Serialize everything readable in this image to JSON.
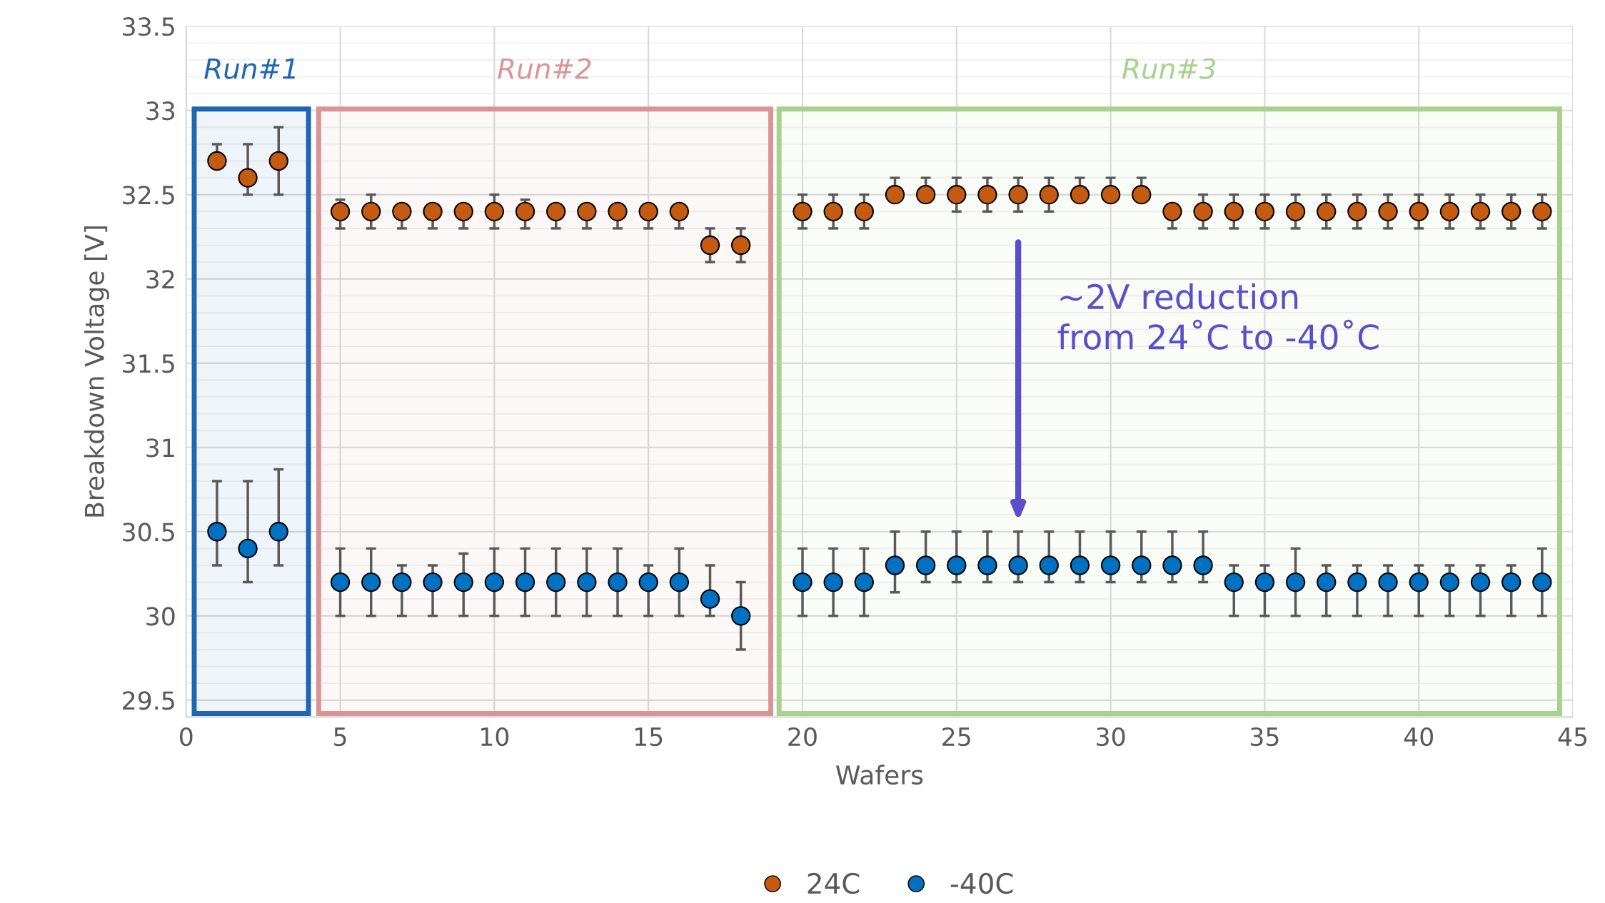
{
  "chart_data": {
    "type": "scatter",
    "xlabel": "Wafers",
    "ylabel": "Breakdown Voltage [V]",
    "xlim": [
      0,
      45
    ],
    "xticks": [
      0,
      5,
      10,
      15,
      20,
      25,
      30,
      35,
      40,
      45
    ],
    "ylim": [
      29.4,
      33.5
    ],
    "yticks": [
      29.5,
      30,
      30.5,
      31,
      31.5,
      32,
      32.5,
      33,
      33.5
    ],
    "grid": true,
    "legend": "bottom",
    "marker": "circle",
    "series": [
      {
        "name": "24C",
        "color": "#c55a11",
        "x": [
          1,
          2,
          3,
          5,
          6,
          7,
          8,
          9,
          10,
          11,
          12,
          13,
          14,
          15,
          16,
          17,
          18,
          20,
          21,
          22,
          23,
          24,
          25,
          26,
          27,
          28,
          29,
          30,
          31,
          32,
          33,
          34,
          35,
          36,
          37,
          38,
          39,
          40,
          41,
          42,
          43,
          44
        ],
        "values": [
          32.7,
          32.6,
          32.7,
          32.4,
          32.4,
          32.4,
          32.4,
          32.4,
          32.4,
          32.4,
          32.4,
          32.4,
          32.4,
          32.4,
          32.4,
          32.2,
          32.2,
          32.4,
          32.4,
          32.4,
          32.5,
          32.5,
          32.5,
          32.5,
          32.5,
          32.5,
          32.5,
          32.5,
          32.5,
          32.4,
          32.4,
          32.4,
          32.4,
          32.4,
          32.4,
          32.4,
          32.4,
          32.4,
          32.4,
          32.4,
          32.4,
          32.4
        ],
        "errors": [
          [
            32.7,
            32.8
          ],
          [
            32.5,
            32.8
          ],
          [
            32.5,
            32.9
          ],
          [
            32.3,
            32.47
          ],
          [
            32.3,
            32.5
          ],
          [
            32.3,
            32.4
          ],
          [
            32.3,
            32.4
          ],
          [
            32.3,
            32.4
          ],
          [
            32.3,
            32.5
          ],
          [
            32.3,
            32.47
          ],
          [
            32.3,
            32.4
          ],
          [
            32.3,
            32.4
          ],
          [
            32.3,
            32.4
          ],
          [
            32.3,
            32.4
          ],
          [
            32.3,
            32.4
          ],
          [
            32.1,
            32.3
          ],
          [
            32.1,
            32.3
          ],
          [
            32.3,
            32.5
          ],
          [
            32.3,
            32.5
          ],
          [
            32.3,
            32.5
          ],
          [
            32.5,
            32.6
          ],
          [
            32.5,
            32.6
          ],
          [
            32.4,
            32.6
          ],
          [
            32.4,
            32.6
          ],
          [
            32.4,
            32.6
          ],
          [
            32.4,
            32.6
          ],
          [
            32.5,
            32.6
          ],
          [
            32.5,
            32.6
          ],
          [
            32.5,
            32.6
          ],
          [
            32.3,
            32.4
          ],
          [
            32.3,
            32.5
          ],
          [
            32.3,
            32.5
          ],
          [
            32.3,
            32.5
          ],
          [
            32.3,
            32.5
          ],
          [
            32.3,
            32.5
          ],
          [
            32.3,
            32.5
          ],
          [
            32.3,
            32.5
          ],
          [
            32.3,
            32.5
          ],
          [
            32.3,
            32.5
          ],
          [
            32.3,
            32.5
          ],
          [
            32.3,
            32.5
          ],
          [
            32.3,
            32.5
          ]
        ]
      },
      {
        "name": "-40C",
        "color": "#0070c0",
        "x": [
          1,
          2,
          3,
          5,
          6,
          7,
          8,
          9,
          10,
          11,
          12,
          13,
          14,
          15,
          16,
          17,
          18,
          20,
          21,
          22,
          23,
          24,
          25,
          26,
          27,
          28,
          29,
          30,
          31,
          32,
          33,
          34,
          35,
          36,
          37,
          38,
          39,
          40,
          41,
          42,
          43,
          44
        ],
        "values": [
          30.5,
          30.4,
          30.5,
          30.2,
          30.2,
          30.2,
          30.2,
          30.2,
          30.2,
          30.2,
          30.2,
          30.2,
          30.2,
          30.2,
          30.2,
          30.1,
          30.0,
          30.2,
          30.2,
          30.2,
          30.3,
          30.3,
          30.3,
          30.3,
          30.3,
          30.3,
          30.3,
          30.3,
          30.3,
          30.3,
          30.3,
          30.2,
          30.2,
          30.2,
          30.2,
          30.2,
          30.2,
          30.2,
          30.2,
          30.2,
          30.2,
          30.2
        ],
        "errors": [
          [
            30.3,
            30.8
          ],
          [
            30.2,
            30.8
          ],
          [
            30.3,
            30.87
          ],
          [
            30.0,
            30.4
          ],
          [
            30.0,
            30.4
          ],
          [
            30.0,
            30.3
          ],
          [
            30.0,
            30.3
          ],
          [
            30.0,
            30.37
          ],
          [
            30.0,
            30.4
          ],
          [
            30.0,
            30.4
          ],
          [
            30.0,
            30.4
          ],
          [
            30.0,
            30.4
          ],
          [
            30.0,
            30.4
          ],
          [
            30.0,
            30.3
          ],
          [
            30.0,
            30.4
          ],
          [
            30.0,
            30.3
          ],
          [
            29.8,
            30.2
          ],
          [
            30.0,
            30.4
          ],
          [
            30.0,
            30.4
          ],
          [
            30.0,
            30.4
          ],
          [
            30.14,
            30.5
          ],
          [
            30.2,
            30.5
          ],
          [
            30.2,
            30.5
          ],
          [
            30.2,
            30.5
          ],
          [
            30.2,
            30.5
          ],
          [
            30.2,
            30.5
          ],
          [
            30.2,
            30.5
          ],
          [
            30.2,
            30.5
          ],
          [
            30.2,
            30.5
          ],
          [
            30.2,
            30.5
          ],
          [
            30.2,
            30.5
          ],
          [
            30.0,
            30.3
          ],
          [
            30.0,
            30.3
          ],
          [
            30.0,
            30.4
          ],
          [
            30.0,
            30.3
          ],
          [
            30.0,
            30.3
          ],
          [
            30.0,
            30.3
          ],
          [
            30.0,
            30.3
          ],
          [
            30.0,
            30.3
          ],
          [
            30.0,
            30.3
          ],
          [
            30.0,
            30.3
          ],
          [
            30.0,
            30.4
          ]
        ]
      }
    ],
    "bands": [
      {
        "axis": "x",
        "from": 0.26,
        "to": 3.97,
        "label": "Run#1",
        "color": "#1f66b2"
      },
      {
        "axis": "x",
        "from": 4.3,
        "to": 18.97,
        "label": "Run#2",
        "color": "#d99594"
      },
      {
        "axis": "x",
        "from": 19.24,
        "to": 44.57,
        "label": "Run#3",
        "color": "#a9d18e"
      }
    ],
    "annotations": [
      "~2V reduction\nfrom 24˚C to -40˚C"
    ]
  }
}
